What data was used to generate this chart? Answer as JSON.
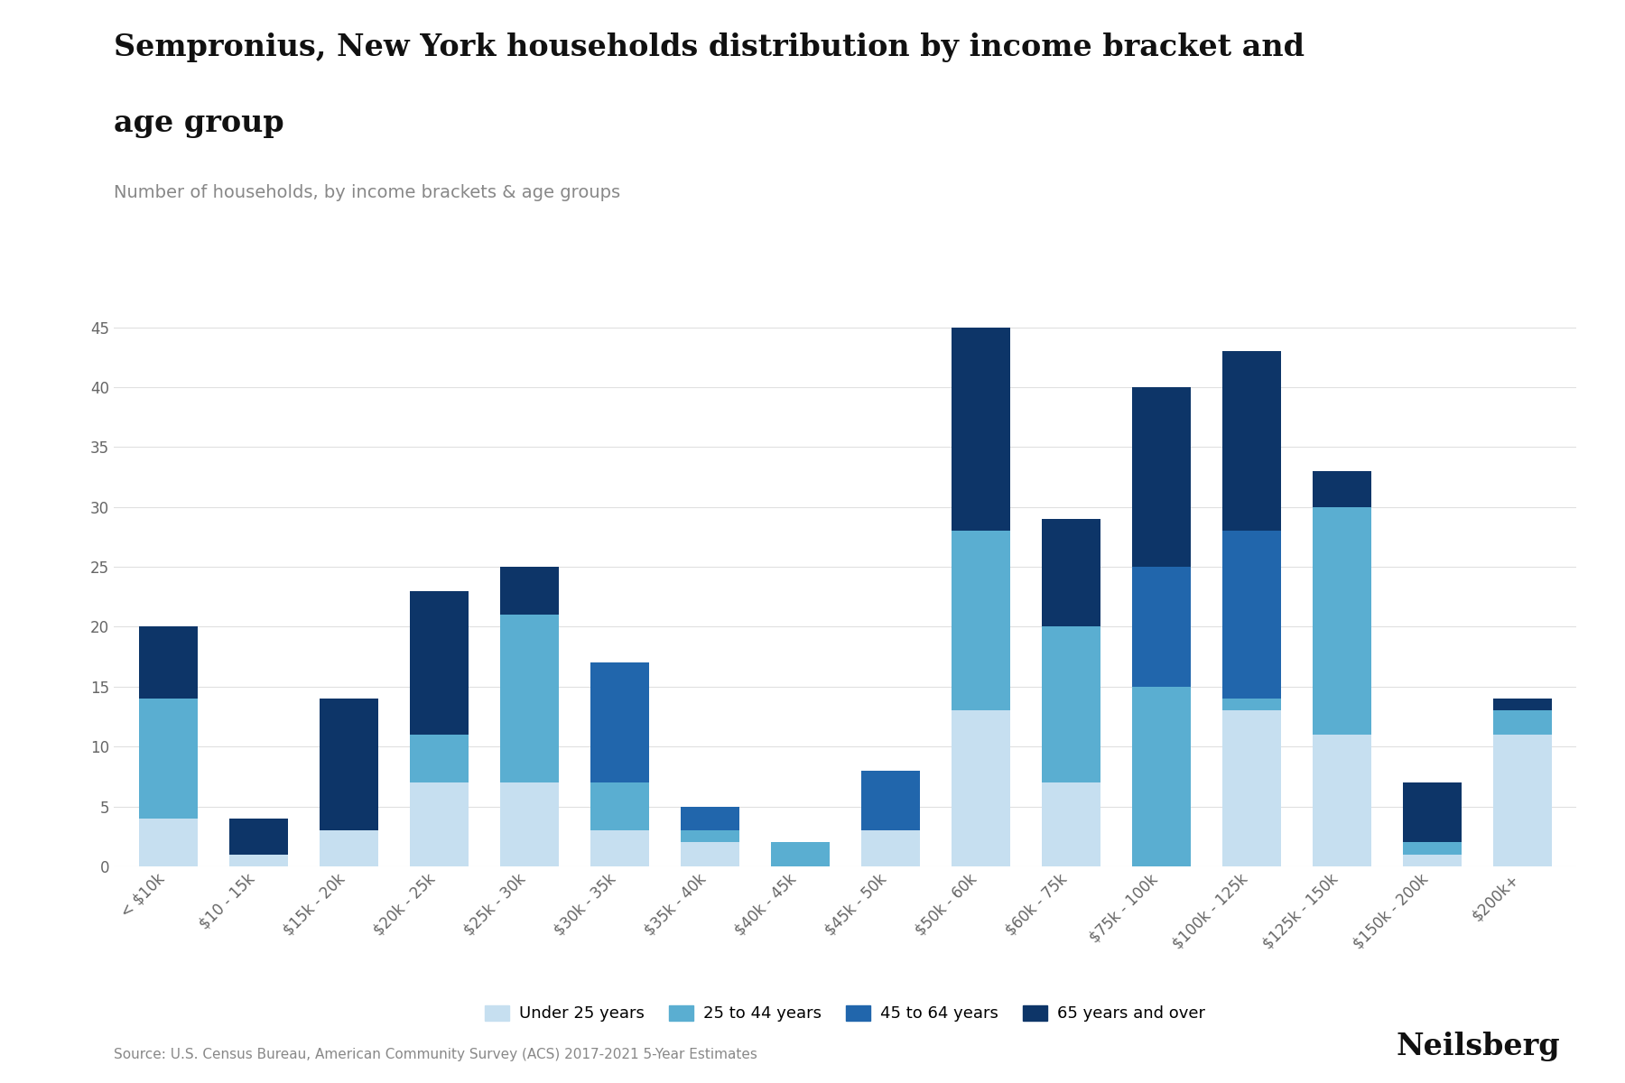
{
  "title_line1": "Sempronius, New York households distribution by income bracket and",
  "title_line2": "age group",
  "subtitle": "Number of households, by income brackets & age groups",
  "source": "Source: U.S. Census Bureau, American Community Survey (ACS) 2017-2021 5-Year Estimates",
  "neilsberg": "Neilsberg",
  "categories": [
    "< $10k",
    "$10 - 15k",
    "$15k - 20k",
    "$20k - 25k",
    "$25k - 30k",
    "$30k - 35k",
    "$35k - 40k",
    "$40k - 45k",
    "$45k - 50k",
    "$50k - 60k",
    "$60k - 75k",
    "$75k - 100k",
    "$100k - 125k",
    "$125k - 150k",
    "$150k - 200k",
    "$200k+"
  ],
  "under25": [
    4,
    1,
    3,
    7,
    7,
    3,
    2,
    0,
    3,
    13,
    7,
    0,
    13,
    11,
    1,
    11
  ],
  "age25to44": [
    10,
    0,
    0,
    4,
    14,
    4,
    1,
    2,
    0,
    15,
    13,
    15,
    1,
    19,
    1,
    2
  ],
  "age45to64": [
    0,
    0,
    0,
    0,
    0,
    10,
    2,
    0,
    5,
    0,
    0,
    10,
    14,
    0,
    0,
    0
  ],
  "age65plus": [
    6,
    3,
    11,
    12,
    4,
    0,
    0,
    0,
    0,
    17,
    9,
    15,
    15,
    3,
    5,
    1
  ],
  "color_under25": "#c6dff0",
  "color_25to44": "#5aaed1",
  "color_45to64": "#2166ac",
  "color_65plus": "#0d3568",
  "ylim": [
    0,
    47
  ],
  "yticks": [
    0,
    5,
    10,
    15,
    20,
    25,
    30,
    35,
    40,
    45
  ],
  "bar_width": 0.65,
  "background_color": "#ffffff",
  "title_fontsize": 24,
  "subtitle_fontsize": 14,
  "tick_fontsize": 12,
  "legend_fontsize": 13,
  "source_fontsize": 11,
  "brand_fontsize": 24
}
